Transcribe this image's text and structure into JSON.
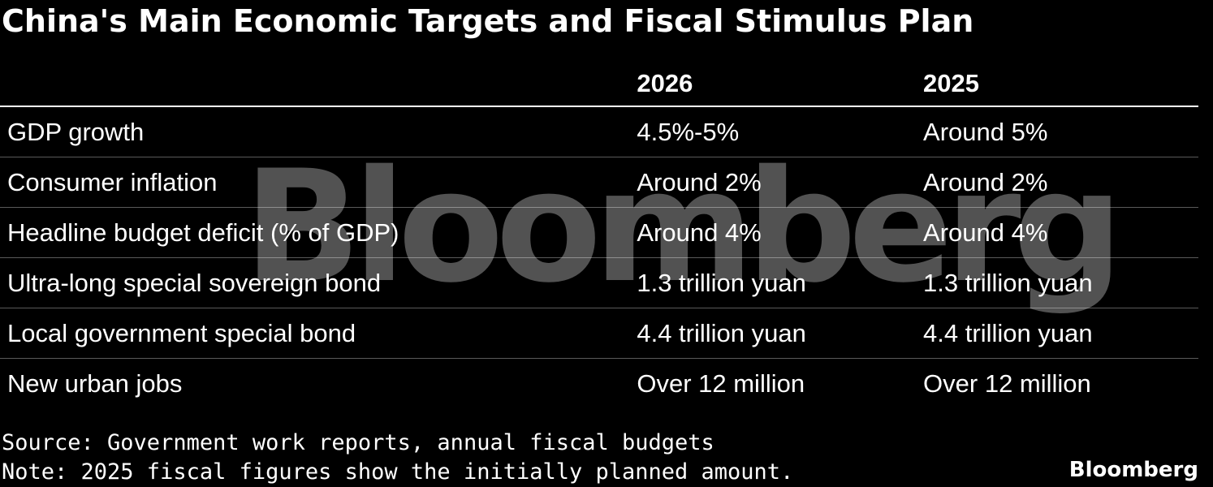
{
  "title": "China's Main Economic Targets and Fiscal Stimulus Plan",
  "watermark": "Bloomberg",
  "chart_data": {
    "type": "table",
    "title": "China's Main Economic Targets and Fiscal Stimulus Plan",
    "columns": [
      "",
      "2026",
      "2025"
    ],
    "rows": [
      {
        "label": "GDP growth",
        "v2026": "4.5%-5%",
        "v2025": "Around 5%"
      },
      {
        "label": "Consumer inflation",
        "v2026": "Around 2%",
        "v2025": "Around 2%"
      },
      {
        "label": "Headline budget deficit (% of GDP)",
        "v2026": "Around 4%",
        "v2025": "Around 4%"
      },
      {
        "label": "Ultra-long special sovereign bond",
        "v2026": "1.3 trillion yuan",
        "v2025": "1.3 trillion yuan"
      },
      {
        "label": "Local government special bond",
        "v2026": "4.4 trillion yuan",
        "v2025": "4.4 trillion yuan"
      },
      {
        "label": "New urban jobs",
        "v2026": "Over 12 million",
        "v2025": "Over 12 million"
      }
    ]
  },
  "footer": {
    "source": "Source: Government work reports, annual fiscal budgets",
    "note": "Note: 2025 fiscal figures show the initially planned amount."
  },
  "brand": "Bloomberg",
  "colors": {
    "background": "#000000",
    "text": "#ffffff",
    "row_divider": "#5a5a5a"
  }
}
